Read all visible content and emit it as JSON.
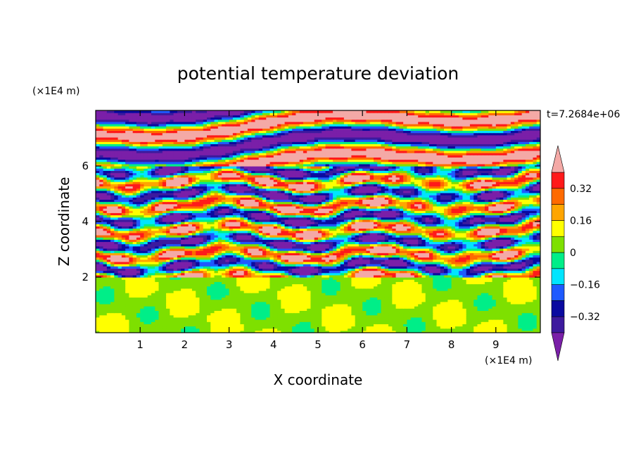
{
  "chart_data": {
    "type": "heatmap",
    "title": "potential temperature deviation",
    "xlabel": "X coordinate",
    "ylabel": "Z coordinate",
    "x_unit": "(×1E4 m)",
    "y_unit": "(×1E4 m)",
    "time_label": "t=7.2684e+06",
    "xlim": [
      0,
      10
    ],
    "ylim": [
      0,
      8
    ],
    "x_ticks": [
      1,
      2,
      3,
      4,
      5,
      6,
      7,
      8,
      9
    ],
    "y_ticks": [
      2,
      4,
      6
    ],
    "colorbar": {
      "levels": [
        -0.48,
        -0.4,
        -0.32,
        -0.24,
        -0.16,
        -0.08,
        0,
        0.08,
        0.16,
        0.24,
        0.32,
        0.4,
        0.48
      ],
      "colors": [
        "#7a1fa8",
        "#3d1a9e",
        "#0a0aa0",
        "#1e5aff",
        "#00e5ff",
        "#00ee88",
        "#7ee000",
        "#ffff00",
        "#ffa500",
        "#ff6a00",
        "#ff1a1a",
        "#f4a9a6"
      ],
      "tick_labels": [
        "0.32",
        "0.16",
        "0",
        "−0.16",
        "−0.32"
      ],
      "tick_values": [
        0.32,
        0.16,
        0,
        -0.16,
        -0.32
      ]
    }
  }
}
